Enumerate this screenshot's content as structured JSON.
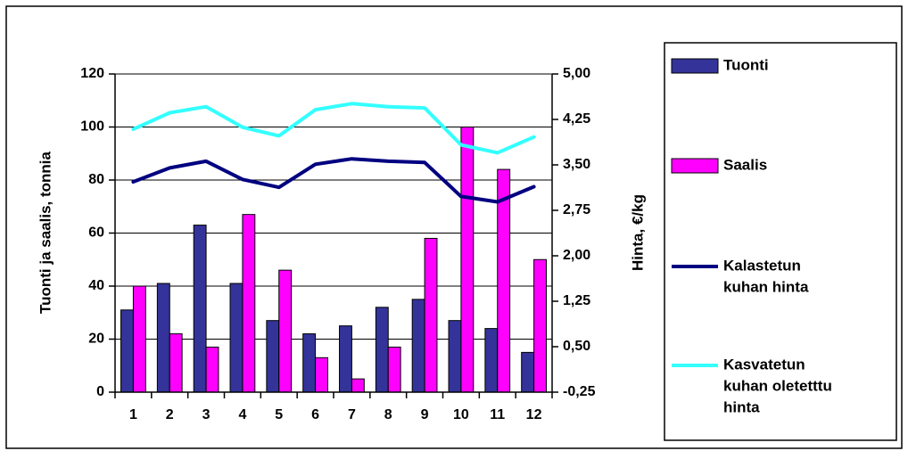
{
  "chart_data": {
    "type": "bar",
    "title": "",
    "xlabel": "",
    "ylabel": "Tuonti ja saalis, tonnia",
    "y2label": "Hinta, €/kg",
    "categories": [
      "1",
      "2",
      "3",
      "4",
      "5",
      "6",
      "7",
      "8",
      "9",
      "10",
      "11",
      "12"
    ],
    "ylim": [
      0,
      120
    ],
    "yticks": [
      "0",
      "20",
      "40",
      "60",
      "80",
      "100",
      "120"
    ],
    "y2lim": [
      -0.25,
      5.0
    ],
    "y2ticks": [
      "-0,25",
      "0,50",
      "1,25",
      "2,00",
      "2,75",
      "3,50",
      "4,25",
      "5,00"
    ],
    "grid": "horizontal",
    "legend_position": "right",
    "series": [
      {
        "name": "Tuonti",
        "kind": "bar",
        "axis": "left",
        "color": "#333399",
        "values": [
          31,
          41,
          63,
          41,
          27,
          22,
          25,
          32,
          35,
          27,
          24,
          15
        ]
      },
      {
        "name": "Saalis",
        "kind": "bar",
        "axis": "left",
        "color": "#ff00ff",
        "values": [
          40,
          22,
          17,
          67,
          46,
          13,
          5,
          17,
          58,
          100,
          84,
          50
        ]
      },
      {
        "name": "Kalastetun kuhan hinta",
        "kind": "line",
        "axis": "right",
        "color": "#000080",
        "values": [
          3.22,
          3.45,
          3.56,
          3.26,
          3.13,
          3.51,
          3.6,
          3.56,
          3.54,
          2.98,
          2.89,
          3.14
        ]
      },
      {
        "name": "Kasvatetun kuhan oletetttu hinta",
        "kind": "line",
        "axis": "right",
        "color": "#33ffff",
        "values": [
          4.09,
          4.36,
          4.46,
          4.12,
          3.98,
          4.41,
          4.51,
          4.46,
          4.44,
          3.83,
          3.7,
          3.96
        ]
      }
    ],
    "legend": {
      "items": [
        {
          "label": "Tuonti",
          "marker": "bar",
          "color": "#333399"
        },
        {
          "label": "Saalis",
          "marker": "bar",
          "color": "#ff00ff"
        },
        {
          "label": "Kalastetun kuhan hinta",
          "lines": [
            "Kalastetun",
            "kuhan hinta"
          ],
          "marker": "line",
          "color": "#000080"
        },
        {
          "label": "Kasvatetun kuhan oletetttu hinta",
          "lines": [
            "Kasvatetun",
            "kuhan oletetttu",
            "hinta"
          ],
          "marker": "line",
          "color": "#33ffff"
        }
      ]
    }
  }
}
